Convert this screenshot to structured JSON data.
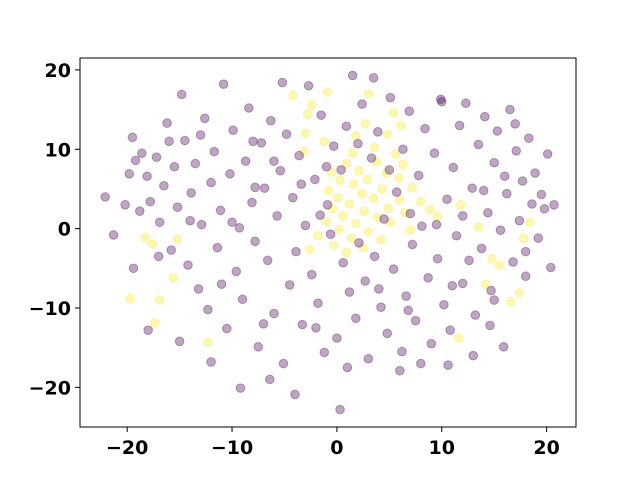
{
  "chart_data": {
    "type": "scatter",
    "xlim": [
      -24.5,
      22.8
    ],
    "ylim": [
      -25,
      21.5
    ],
    "grid": false,
    "x_ticks": [
      -20,
      -10,
      0,
      10,
      20
    ],
    "y_ticks": [
      -20,
      -10,
      0,
      10,
      20
    ],
    "x_tick_labels": [
      "−20",
      "−10",
      "0",
      "10",
      "20"
    ],
    "y_tick_labels": [
      "−20",
      "−10",
      "0",
      "10",
      "20"
    ],
    "title": "",
    "xlabel": "",
    "ylabel": "",
    "point_alpha": 0.35,
    "series": [
      {
        "color": "#fde725",
        "points": [
          [
            -4.2,
            16.8
          ],
          [
            -0.9,
            17.2
          ],
          [
            3.0,
            17.0
          ],
          [
            -2.8,
            14.4
          ],
          [
            5.4,
            14.6
          ],
          [
            2.7,
            13.2
          ],
          [
            6.1,
            13.0
          ],
          [
            -3.0,
            12.0
          ],
          [
            1.8,
            11.7
          ],
          [
            4.8,
            11.9
          ],
          [
            -1.2,
            11.0
          ],
          [
            -3.1,
            9.7
          ],
          [
            1.5,
            9.5
          ],
          [
            3.6,
            10.2
          ],
          [
            5.6,
            9.4
          ],
          [
            0.9,
            8.2
          ],
          [
            3.8,
            8.4
          ],
          [
            6.3,
            8.1
          ],
          [
            -0.5,
            7.1
          ],
          [
            2.1,
            7.3
          ],
          [
            4.7,
            7.0
          ],
          [
            0.3,
            6.1
          ],
          [
            2.9,
            6.2
          ],
          [
            5.9,
            6.4
          ],
          [
            1.6,
            5.6
          ],
          [
            4.3,
            5.0
          ],
          [
            7.2,
            5.2
          ],
          [
            -0.8,
            4.8
          ],
          [
            2.4,
            4.4
          ],
          [
            0.1,
            3.9
          ],
          [
            3.5,
            3.8
          ],
          [
            6.0,
            3.6
          ],
          [
            8.0,
            3.4
          ],
          [
            1.2,
            3.1
          ],
          [
            4.9,
            2.6
          ],
          [
            -0.4,
            2.5
          ],
          [
            2.6,
            2.2
          ],
          [
            6.5,
            2.0
          ],
          [
            8.9,
            2.4
          ],
          [
            0.6,
            1.6
          ],
          [
            3.9,
            1.4
          ],
          [
            9.6,
            1.5
          ],
          [
            -1.0,
            0.9
          ],
          [
            1.8,
            0.7
          ],
          [
            5.1,
            0.8
          ],
          [
            0.2,
            -0.1
          ],
          [
            3.0,
            -0.4
          ],
          [
            7.0,
            -0.2
          ],
          [
            -1.8,
            -0.9
          ],
          [
            1.4,
            -1.2
          ],
          [
            4.2,
            -1.4
          ],
          [
            -0.3,
            -2.1
          ],
          [
            2.5,
            -2.4
          ],
          [
            -2.6,
            -2.6
          ],
          [
            0.9,
            -3.0
          ],
          [
            -18.3,
            -1.1
          ],
          [
            -17.6,
            -1.9
          ],
          [
            -15.2,
            -1.3
          ],
          [
            -19.7,
            -8.8
          ],
          [
            -16.9,
            -9.0
          ],
          [
            -17.4,
            -11.9
          ],
          [
            -12.3,
            -14.3
          ],
          [
            -15.6,
            -6.2
          ],
          [
            11.6,
            -13.8
          ],
          [
            14.8,
            -3.8
          ],
          [
            15.5,
            -4.6
          ],
          [
            17.4,
            -8.1
          ],
          [
            16.6,
            -9.2
          ],
          [
            14.2,
            -7.0
          ],
          [
            18.4,
            0.8
          ],
          [
            17.8,
            -1.2
          ],
          [
            13.5,
            0.2
          ],
          [
            11.8,
            3.0
          ],
          [
            -2.4,
            15.6
          ]
        ]
      },
      {
        "color": "#440154",
        "points": [
          [
            -22.1,
            4.0
          ],
          [
            -21.3,
            -0.8
          ],
          [
            -19.8,
            6.9
          ],
          [
            -19.5,
            11.5
          ],
          [
            -19.2,
            8.6
          ],
          [
            -18.8,
            2.2
          ],
          [
            -18.1,
            6.6
          ],
          [
            -17.8,
            3.4
          ],
          [
            -17.2,
            9.0
          ],
          [
            -16.9,
            0.8
          ],
          [
            -16.5,
            5.4
          ],
          [
            -16.2,
            13.3
          ],
          [
            -15.8,
            -2.7
          ],
          [
            -15.5,
            7.8
          ],
          [
            -15.2,
            2.7
          ],
          [
            -14.8,
            16.9
          ],
          [
            -14.5,
            11.1
          ],
          [
            -14.2,
            -4.6
          ],
          [
            -13.9,
            4.5
          ],
          [
            -13.5,
            8.2
          ],
          [
            -13.2,
            -7.6
          ],
          [
            -12.9,
            0.5
          ],
          [
            -12.6,
            13.9
          ],
          [
            -12.3,
            -10.2
          ],
          [
            -12.0,
            5.8
          ],
          [
            -11.7,
            9.7
          ],
          [
            -11.4,
            -2.4
          ],
          [
            -11.1,
            2.3
          ],
          [
            -10.8,
            18.2
          ],
          [
            -10.5,
            -12.6
          ],
          [
            -10.2,
            6.9
          ],
          [
            -9.9,
            12.4
          ],
          [
            -9.6,
            -5.4
          ],
          [
            -9.3,
            0.1
          ],
          [
            -9.0,
            -8.9
          ],
          [
            -8.7,
            8.5
          ],
          [
            -8.4,
            15.2
          ],
          [
            -8.1,
            3.3
          ],
          [
            -7.8,
            -1.6
          ],
          [
            -7.5,
            -14.9
          ],
          [
            -7.2,
            10.8
          ],
          [
            -6.9,
            5.1
          ],
          [
            -6.6,
            -4.0
          ],
          [
            -6.3,
            13.6
          ],
          [
            -6.0,
            -10.7
          ],
          [
            -5.7,
            1.6
          ],
          [
            -5.4,
            7.3
          ],
          [
            -5.1,
            -17.0
          ],
          [
            -4.8,
            11.9
          ],
          [
            -4.5,
            -7.1
          ],
          [
            -4.2,
            3.9
          ],
          [
            -3.9,
            -2.9
          ],
          [
            -3.6,
            9.2
          ],
          [
            -3.3,
            -12.1
          ],
          [
            -3.0,
            0.4
          ],
          [
            -2.7,
            18.0
          ],
          [
            -2.4,
            -5.8
          ],
          [
            -2.1,
            6.2
          ],
          [
            -1.8,
            -9.4
          ],
          [
            -1.5,
            14.3
          ],
          [
            -1.2,
            -15.6
          ],
          [
            -0.9,
            3.0
          ],
          [
            -0.6,
            -0.7
          ],
          [
            -0.3,
            10.4
          ],
          [
            0.0,
            -13.8
          ],
          [
            0.3,
            -22.8
          ],
          [
            0.6,
            -4.3
          ],
          [
            0.9,
            12.9
          ],
          [
            1.2,
            -8.0
          ],
          [
            1.5,
            19.3
          ],
          [
            1.8,
            -11.3
          ],
          [
            2.1,
            -1.8
          ],
          [
            2.4,
            15.7
          ],
          [
            2.7,
            -6.6
          ],
          [
            3.0,
            -16.4
          ],
          [
            3.3,
            8.9
          ],
          [
            3.6,
            -3.5
          ],
          [
            3.9,
            12.2
          ],
          [
            4.2,
            -9.9
          ],
          [
            4.5,
            1.2
          ],
          [
            4.8,
            -13.2
          ],
          [
            5.1,
            16.5
          ],
          [
            5.4,
            -5.1
          ],
          [
            5.7,
            4.6
          ],
          [
            6.0,
            -17.9
          ],
          [
            6.3,
            10.0
          ],
          [
            6.6,
            -8.5
          ],
          [
            6.9,
            14.8
          ],
          [
            7.2,
            -2.0
          ],
          [
            7.5,
            -11.6
          ],
          [
            7.8,
            6.7
          ],
          [
            8.1,
            0.3
          ],
          [
            8.4,
            12.6
          ],
          [
            8.7,
            -6.2
          ],
          [
            9.0,
            -14.5
          ],
          [
            9.3,
            9.5
          ],
          [
            9.6,
            -3.8
          ],
          [
            9.9,
            16.3
          ],
          [
            10.2,
            -9.6
          ],
          [
            10.5,
            3.7
          ],
          [
            10.8,
            -12.8
          ],
          [
            11.1,
            7.7
          ],
          [
            11.4,
            -0.9
          ],
          [
            11.7,
            13.0
          ],
          [
            12.0,
            -6.9
          ],
          [
            12.3,
            15.8
          ],
          [
            12.6,
            -4.0
          ],
          [
            12.9,
            5.1
          ],
          [
            13.2,
            -10.9
          ],
          [
            13.5,
            10.6
          ],
          [
            13.8,
            -2.5
          ],
          [
            14.1,
            14.1
          ],
          [
            14.4,
            2.0
          ],
          [
            14.7,
            -7.8
          ],
          [
            15.0,
            8.3
          ],
          [
            15.3,
            12.3
          ],
          [
            15.6,
            -0.2
          ],
          [
            15.9,
            -14.9
          ],
          [
            16.2,
            4.4
          ],
          [
            16.5,
            15.0
          ],
          [
            16.8,
            -4.2
          ],
          [
            17.1,
            9.8
          ],
          [
            17.4,
            1.0
          ],
          [
            17.7,
            6.0
          ],
          [
            18.0,
            -2.9
          ],
          [
            18.3,
            11.4
          ],
          [
            18.6,
            3.1
          ],
          [
            18.9,
            7.0
          ],
          [
            19.2,
            -1.2
          ],
          [
            19.5,
            4.3
          ],
          [
            19.8,
            2.5
          ],
          [
            20.1,
            9.4
          ],
          [
            20.4,
            -4.9
          ],
          [
            20.7,
            3.0
          ],
          [
            -20.2,
            3.0
          ],
          [
            -19.4,
            -5.0
          ],
          [
            -18.6,
            9.5
          ],
          [
            -17.0,
            -3.5
          ],
          [
            -16.0,
            11.0
          ],
          [
            -14.0,
            1.0
          ],
          [
            -13.0,
            11.8
          ],
          [
            -11.0,
            -7.0
          ],
          [
            -10.0,
            0.8
          ],
          [
            -9.2,
            -20.1
          ],
          [
            -8.0,
            11.0
          ],
          [
            -7.0,
            -12.0
          ],
          [
            -6.0,
            8.5
          ],
          [
            -5.2,
            18.4
          ],
          [
            -4.0,
            -20.9
          ],
          [
            -3.4,
            5.6
          ],
          [
            -2.0,
            -12.5
          ],
          [
            -1.0,
            7.8
          ],
          [
            1.0,
            -17.5
          ],
          [
            2.0,
            10.7
          ],
          [
            3.5,
            19.0
          ],
          [
            4.0,
            -7.6
          ],
          [
            5.0,
            7.4
          ],
          [
            6.2,
            -15.5
          ],
          [
            7.0,
            1.9
          ],
          [
            8.0,
            -17.0
          ],
          [
            9.5,
            0.5
          ],
          [
            10.0,
            16.0
          ],
          [
            11.0,
            -7.2
          ],
          [
            12.0,
            1.6
          ],
          [
            13.0,
            -16.0
          ],
          [
            14.0,
            4.8
          ],
          [
            15.0,
            -9.0
          ],
          [
            16.0,
            6.6
          ],
          [
            17.0,
            13.2
          ],
          [
            18.0,
            -6.0
          ],
          [
            -18.0,
            -12.8
          ],
          [
            -15.0,
            -14.2
          ],
          [
            -12.0,
            -16.8
          ],
          [
            -7.8,
            5.2
          ],
          [
            -6.4,
            -19.0
          ],
          [
            -1.6,
            1.7
          ],
          [
            0.4,
            7.4
          ],
          [
            6.8,
            -10.3
          ],
          [
            10.6,
            -17.2
          ],
          [
            14.6,
            -12.2
          ]
        ]
      }
    ]
  }
}
